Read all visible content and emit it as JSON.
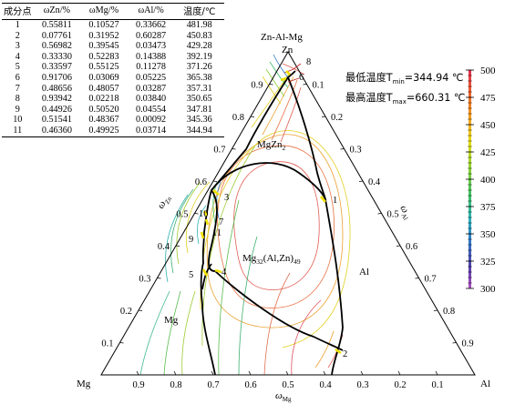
{
  "table": {
    "headers": [
      "成分点",
      "ωZn/%",
      "ωMg/%",
      "ωAl/%",
      "温度/℃"
    ],
    "rows": [
      [
        "1",
        "0.55811",
        "0.10527",
        "0.33662",
        "481.98"
      ],
      [
        "2",
        "0.07761",
        "0.31952",
        "0.60287",
        "450.83"
      ],
      [
        "3",
        "0.56982",
        "0.39545",
        "0.03473",
        "429.28"
      ],
      [
        "4",
        "0.33330",
        "0.52283",
        "0.14388",
        "392.19"
      ],
      [
        "5",
        "0.33597",
        "0.55125",
        "0.11278",
        "371.26"
      ],
      [
        "6",
        "0.91706",
        "0.03069",
        "0.05225",
        "365.38"
      ],
      [
        "7",
        "0.48656",
        "0.48057",
        "0.03287",
        "357.31"
      ],
      [
        "8",
        "0.93942",
        "0.02218",
        "0.03840",
        "350.65"
      ],
      [
        "9",
        "0.44926",
        "0.50520",
        "0.04554",
        "347.81"
      ],
      [
        "10",
        "0.51541",
        "0.48367",
        "0.00092",
        "345.36"
      ],
      [
        "11",
        "0.46360",
        "0.49925",
        "0.03714",
        "344.94"
      ]
    ]
  },
  "temperature_info": {
    "min_label": "最低温度T",
    "min_sub": "min",
    "min_value": "=344.94 ℃",
    "max_label": "最高温度T",
    "max_sub": "max",
    "max_value": "=660.31 ℃"
  },
  "diagram": {
    "system_title": "Zn-Al-Mg",
    "vertex_top": "Zn",
    "vertex_left": "Mg",
    "vertex_right": "Al",
    "phase_mgzn2": "MgZn",
    "phase_mgzn2_sub": "2",
    "phase_mg32_main": "Mg",
    "phase_mg32_sub1": "32",
    "phase_mg32_mid": "(Al,Zn)",
    "phase_mg32_sub2": "49",
    "region_mg": "Mg",
    "region_al": "Al",
    "axis_bottom_label": "ω",
    "axis_bottom_sub": "Mg",
    "axis_left_label": "ω",
    "axis_left_sub": "Zn",
    "axis_right_label": "ω",
    "axis_right_sub": "Al",
    "bottom_ticks": [
      "0.9",
      "0.8",
      "0.7",
      "0.6",
      "0.5",
      "0.4",
      "0.3",
      "0.2",
      "0.1"
    ],
    "left_ticks": [
      "0.1",
      "0.2",
      "0.3",
      "0.4",
      "0.5",
      "0.6",
      "0.7",
      "0.8",
      "0.9"
    ],
    "right_ticks": [
      "0.1",
      "0.2",
      "0.3",
      "0.4",
      "0.5",
      "0.6",
      "0.7",
      "0.8",
      "0.9"
    ],
    "points": [
      "1",
      "2",
      "3",
      "4",
      "5",
      "6",
      "7",
      "8",
      "9",
      "10",
      "11"
    ]
  },
  "colorbar": {
    "ticks": [
      "500",
      "475",
      "450",
      "425",
      "400",
      "375",
      "350",
      "325",
      "300"
    ],
    "stops": [
      "#e03050",
      "#e8612c",
      "#f0a020",
      "#e8d818",
      "#a8d830",
      "#40c060",
      "#30b0b0",
      "#3070c0",
      "#6040a0",
      "#b050c0"
    ]
  }
}
